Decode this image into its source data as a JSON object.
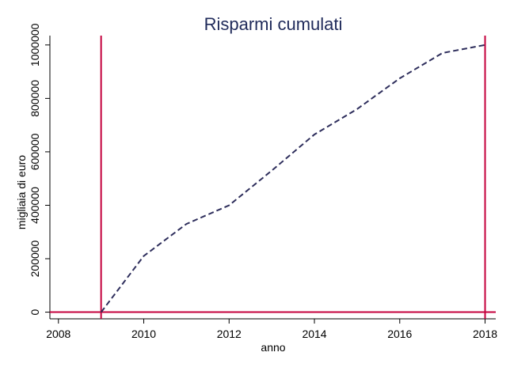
{
  "chart_data": {
    "type": "line",
    "title": "Risparmi cumulati",
    "xlabel": "anno",
    "ylabel": "migliaia di euro",
    "xlim": [
      2007.8,
      2018.25
    ],
    "ylim": [
      -25000,
      1035000
    ],
    "x_ticks": [
      2008,
      2010,
      2012,
      2014,
      2016,
      2018
    ],
    "y_ticks": [
      0,
      200000,
      400000,
      600000,
      800000,
      1000000
    ],
    "grid": false,
    "legend": "none",
    "series": [
      {
        "x": [
          2009,
          2010,
          2011,
          2012,
          2013,
          2014,
          2015,
          2016,
          2017,
          2018
        ],
        "y": [
          0,
          210000,
          330000,
          400000,
          530000,
          665000,
          760000,
          875000,
          970000,
          1000000
        ],
        "style": "dashed",
        "color": "#2e2e5c"
      }
    ],
    "reference_lines": {
      "vertical_x": [
        2009,
        2018
      ],
      "horizontal_y": [
        0
      ],
      "color": "#c4003c"
    }
  }
}
